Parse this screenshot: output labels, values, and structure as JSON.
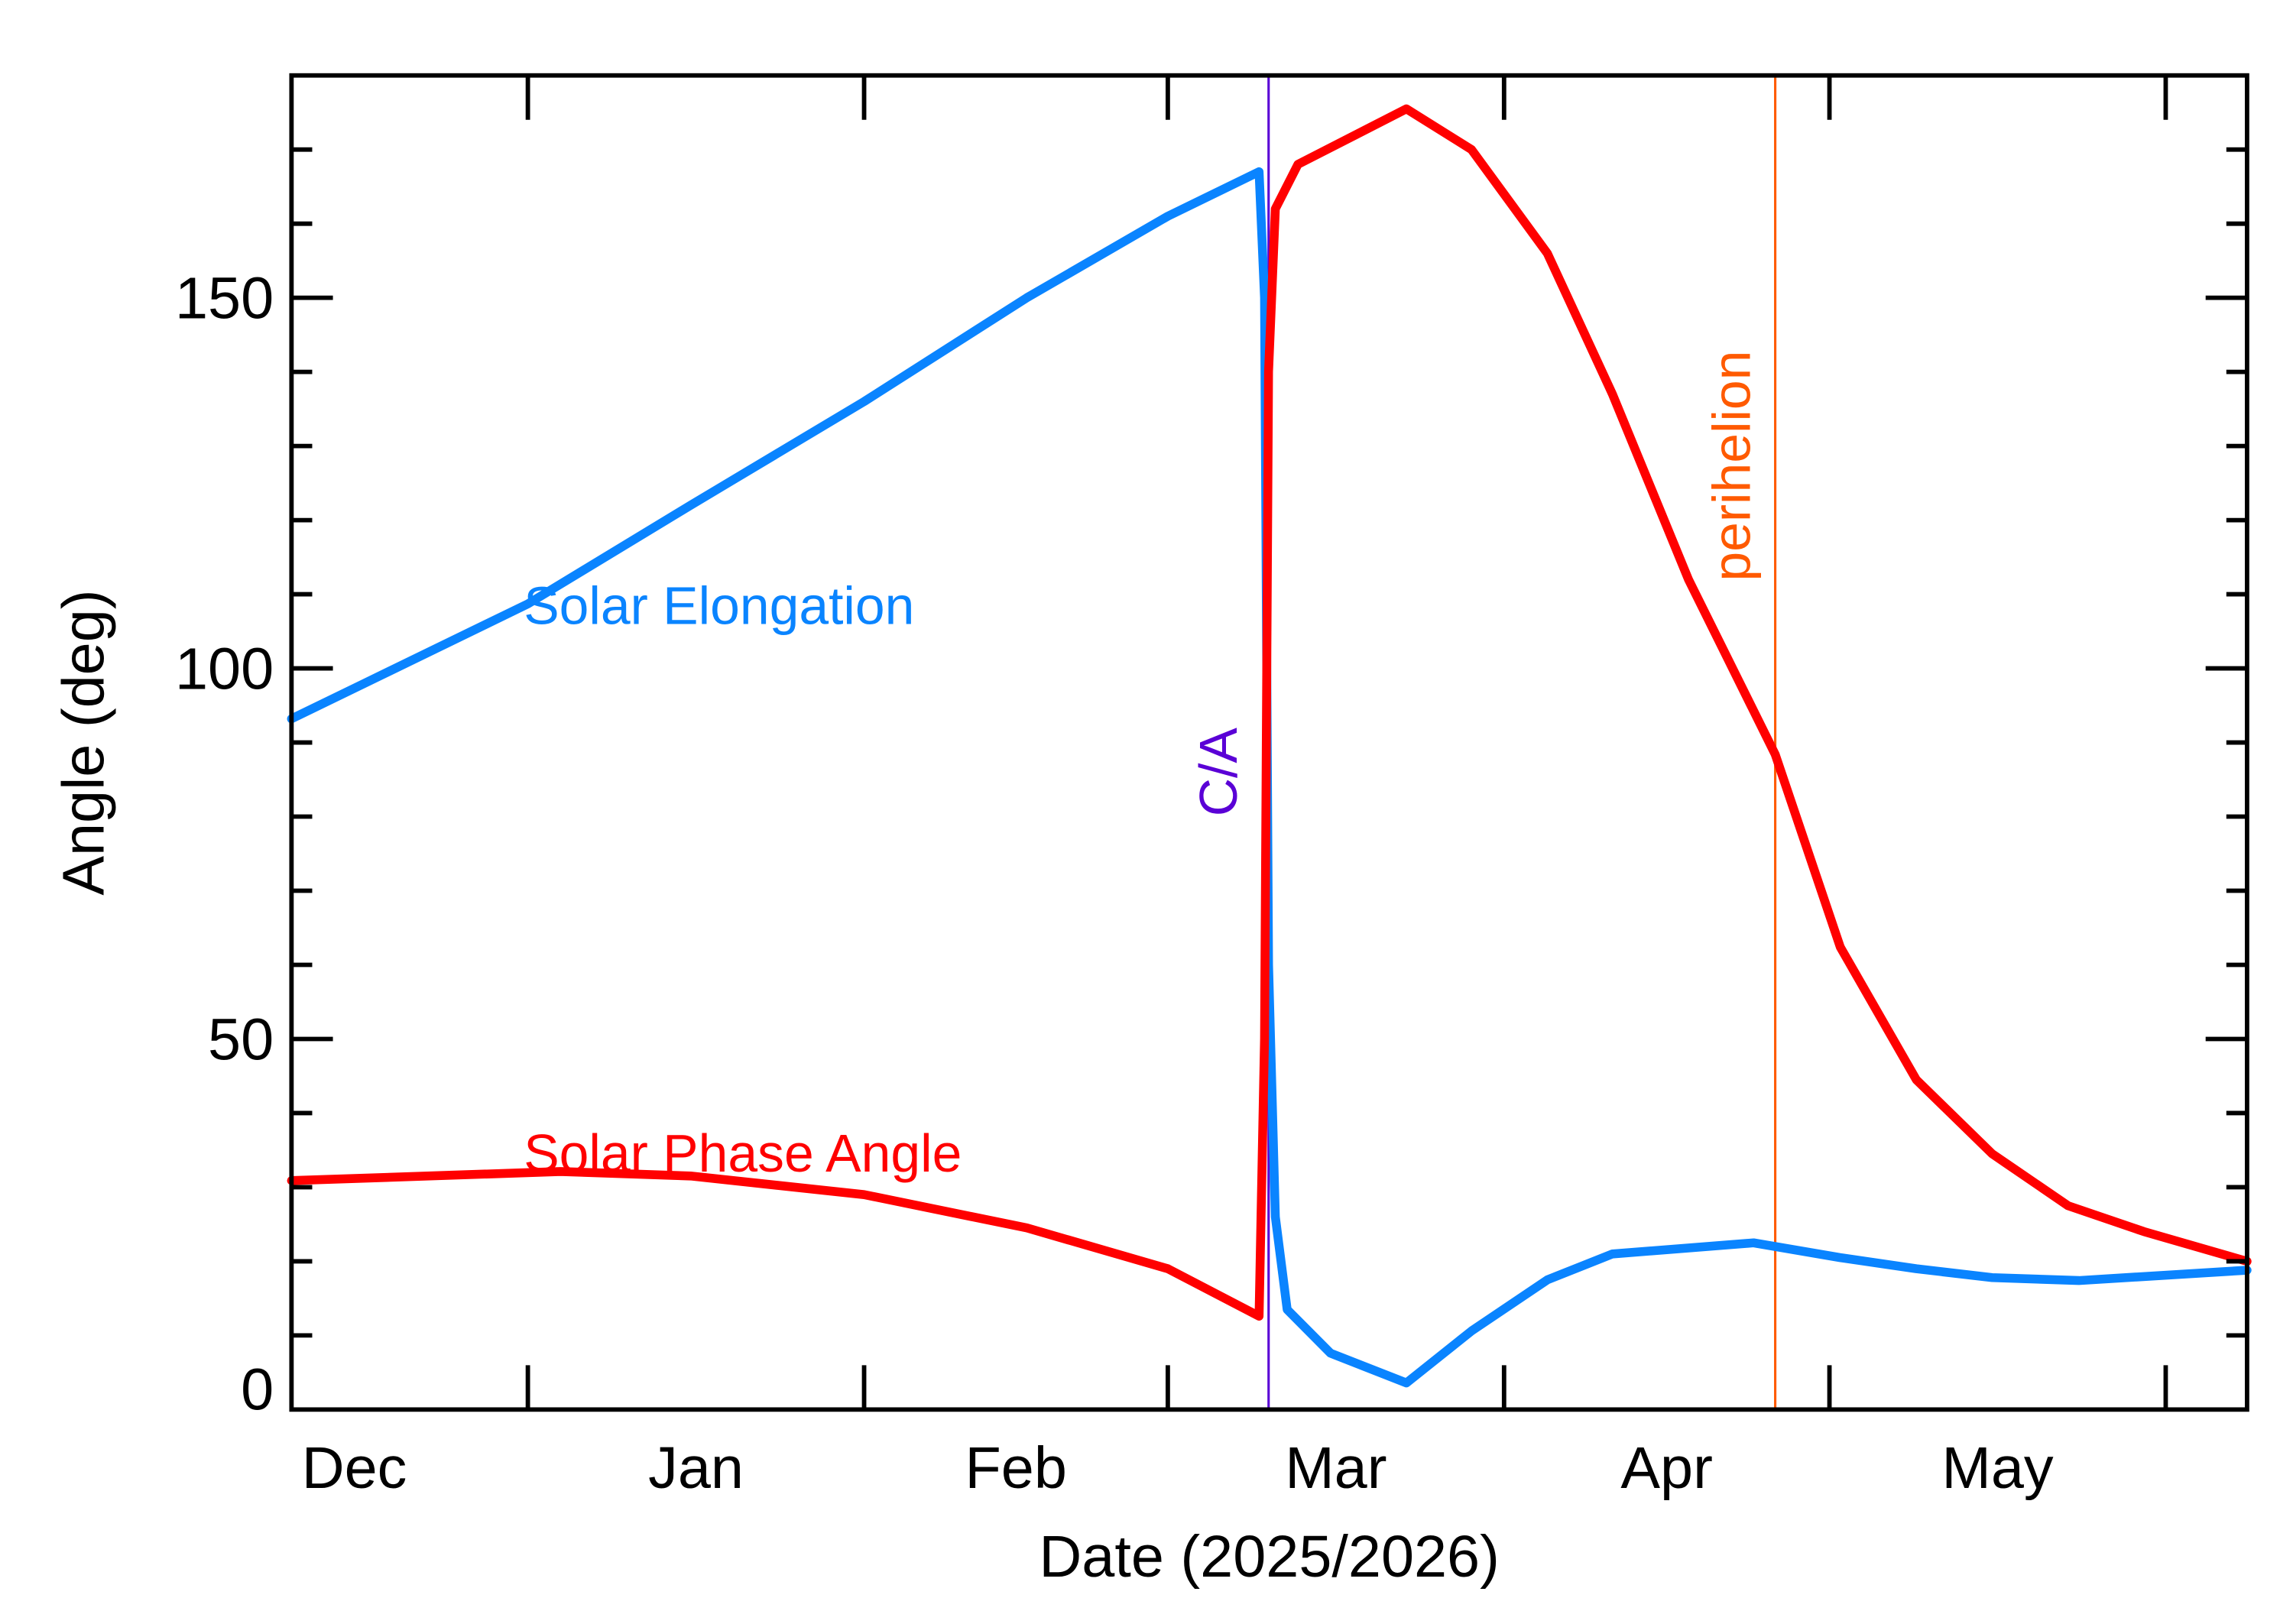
{
  "chart_data": {
    "type": "line",
    "xlabel": "Date (2025/2026)",
    "ylabel": "Angle (deg)",
    "xlim": [
      "2025-12-10T05:00:00Z",
      "2026-06-08T12:00:00Z"
    ],
    "ylim": [
      0,
      180
    ],
    "x_ticks": [
      {
        "date": "2026-01-01T00:00:00Z"
      },
      {
        "date": "2026-02-01T00:00:00Z"
      },
      {
        "date": "2026-03-01T00:00:00Z"
      },
      {
        "date": "2026-04-01T00:00:00Z"
      },
      {
        "date": "2026-05-01T00:00:00Z"
      },
      {
        "date": "2026-06-01T00:00:00Z"
      }
    ],
    "x_tick_labels": [
      {
        "label": "Dec",
        "date": "2025-12-16T00:00:00Z"
      },
      {
        "label": "Jan",
        "date": "2026-01-16T12:00:00Z"
      },
      {
        "label": "Feb",
        "date": "2026-02-15T00:00:00Z"
      },
      {
        "label": "Mar",
        "date": "2026-03-16T12:00:00Z"
      },
      {
        "label": "Apr",
        "date": "2026-04-16T00:00:00Z"
      },
      {
        "label": "May",
        "date": "2026-05-16T12:00:00Z"
      }
    ],
    "y_major_ticks": [
      0,
      50,
      100,
      150
    ],
    "y_tick_labels": [
      "0",
      "50",
      "100",
      "150"
    ],
    "y_minor_step": 10,
    "grid": false,
    "series": [
      {
        "name": "Solar Elongation",
        "color": "#0a84ff",
        "points": [
          [
            "2025-12-10T05:00:00Z",
            93.2
          ],
          [
            "2026-01-01T00:00:00Z",
            108.7
          ],
          [
            "2026-01-16T00:00:00Z",
            122
          ],
          [
            "2026-02-01T00:00:00Z",
            136
          ],
          [
            "2026-02-16T00:00:00Z",
            150
          ],
          [
            "2026-03-01T00:00:00Z",
            161
          ],
          [
            "2026-03-09T10:00:00Z",
            167
          ],
          [
            "2026-03-09T22:00:00Z",
            150
          ],
          [
            "2026-03-10T07:00:00Z",
            60
          ],
          [
            "2026-03-10T22:00:00Z",
            26
          ],
          [
            "2026-03-12T00:00:00Z",
            13.5
          ],
          [
            "2026-03-16T00:00:00Z",
            7.6
          ],
          [
            "2026-03-23T00:00:00Z",
            3.6
          ],
          [
            "2026-03-29T00:00:00Z",
            10.6
          ],
          [
            "2026-04-05T00:00:00Z",
            17.5
          ],
          [
            "2026-04-11T00:00:00Z",
            21
          ],
          [
            "2026-04-24T00:00:00Z",
            22.5
          ],
          [
            "2026-05-02T00:00:00Z",
            20.5
          ],
          [
            "2026-05-09T00:00:00Z",
            19
          ],
          [
            "2026-05-16T00:00:00Z",
            17.8
          ],
          [
            "2026-05-24T00:00:00Z",
            17.4
          ],
          [
            "2026-06-08T12:00:00Z",
            18.8
          ]
        ]
      },
      {
        "name": "Solar Phase Angle",
        "color": "#ff0000",
        "points": [
          [
            "2025-12-10T05:00:00Z",
            30.9
          ],
          [
            "2026-01-04T00:00:00Z",
            32.1
          ],
          [
            "2026-01-16T00:00:00Z",
            31.5
          ],
          [
            "2026-02-01T00:00:00Z",
            29
          ],
          [
            "2026-02-16T00:00:00Z",
            24.5
          ],
          [
            "2026-03-01T00:00:00Z",
            19
          ],
          [
            "2026-03-09T10:00:00Z",
            12.6
          ],
          [
            "2026-03-09T22:00:00Z",
            50
          ],
          [
            "2026-03-10T07:00:00Z",
            140
          ],
          [
            "2026-03-10T22:00:00Z",
            162
          ],
          [
            "2026-03-13T00:00:00Z",
            168
          ],
          [
            "2026-03-23T00:00:00Z",
            175.5
          ],
          [
            "2026-03-29T00:00:00Z",
            170
          ],
          [
            "2026-04-05T00:00:00Z",
            156
          ],
          [
            "2026-04-11T00:00:00Z",
            137
          ],
          [
            "2026-04-18T00:00:00Z",
            112
          ],
          [
            "2026-04-26T00:00:00Z",
            88.4
          ],
          [
            "2026-05-02T00:00:00Z",
            62.4
          ],
          [
            "2026-05-09T00:00:00Z",
            44.5
          ],
          [
            "2026-05-16T00:00:00Z",
            34.5
          ],
          [
            "2026-05-23T00:00:00Z",
            27.5
          ],
          [
            "2026-05-30T00:00:00Z",
            24
          ],
          [
            "2026-06-08T12:00:00Z",
            20
          ]
        ]
      }
    ],
    "markers": [
      {
        "label": "C/A",
        "date": "2026-03-10T07:00:00Z",
        "color": "#5a00d6"
      },
      {
        "label": "perihelion",
        "date": "2026-04-26T00:00:00Z",
        "color": "#ff5a00"
      }
    ],
    "annotations": [
      {
        "text": "Solar Elongation",
        "color": "#0a84ff"
      },
      {
        "text": "Solar Phase Angle",
        "color": "#ff0000"
      }
    ]
  }
}
